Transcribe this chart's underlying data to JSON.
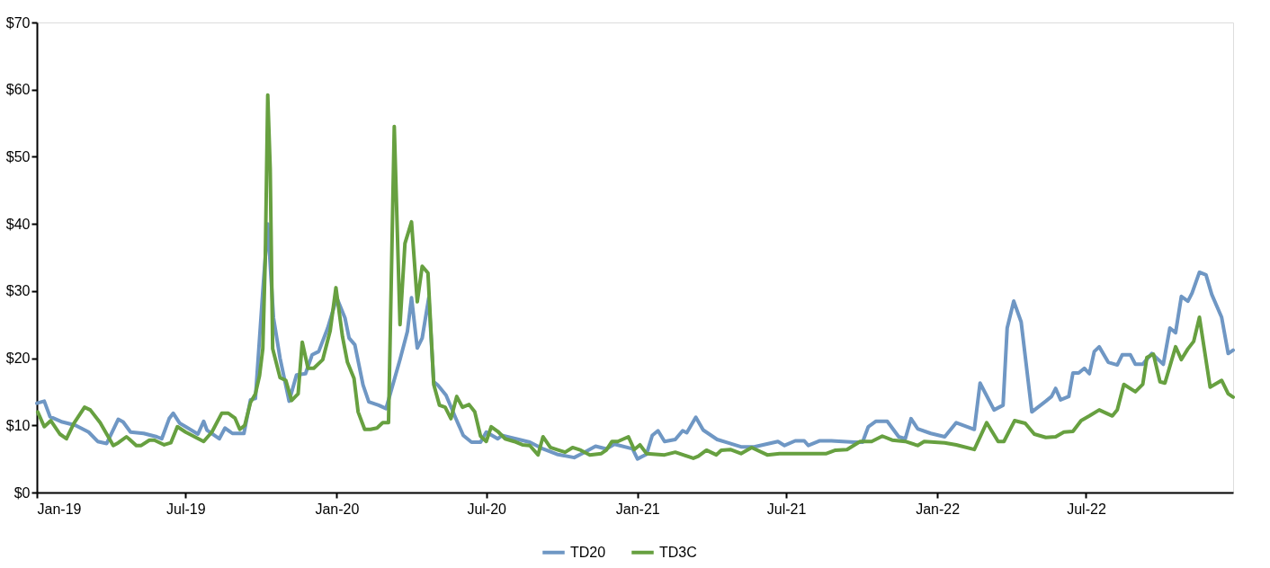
{
  "chart_data": {
    "type": "line",
    "legend": "bottom",
    "grid": false,
    "line_style": "solid",
    "marker": "none",
    "xlim": [
      "2019-01-01",
      "2022-12-27"
    ],
    "xticks": [
      {
        "value": "2019-01-01",
        "label": "Jan-19"
      },
      {
        "value": "2019-07-01",
        "label": "Jul-19"
      },
      {
        "value": "2020-01-01",
        "label": "Jan-20"
      },
      {
        "value": "2020-07-01",
        "label": "Jul-20"
      },
      {
        "value": "2021-01-01",
        "label": "Jan-21"
      },
      {
        "value": "2021-07-01",
        "label": "Jul-21"
      },
      {
        "value": "2022-01-01",
        "label": "Jan-22"
      },
      {
        "value": "2022-07-01",
        "label": "Jul-22"
      }
    ],
    "ylim": [
      0,
      70
    ],
    "yticks": [
      {
        "value": 0,
        "label": "$0"
      },
      {
        "value": 10,
        "label": "$10"
      },
      {
        "value": 20,
        "label": "$20"
      },
      {
        "value": 30,
        "label": "$30"
      },
      {
        "value": 40,
        "label": "$40"
      },
      {
        "value": 50,
        "label": "$50"
      },
      {
        "value": 60,
        "label": "$60"
      },
      {
        "value": 70,
        "label": "$70"
      }
    ],
    "series": [
      {
        "name": "TD20",
        "color": "#6f97c4",
        "x": [
          "2019-01-01",
          "2019-01-10",
          "2019-01-17",
          "2019-02-01",
          "2019-02-17",
          "2019-03-05",
          "2019-03-16",
          "2019-03-27",
          "2019-04-10",
          "2019-04-16",
          "2019-04-25",
          "2019-05-11",
          "2019-05-27",
          "2019-06-02",
          "2019-06-11",
          "2019-06-16",
          "2019-06-24",
          "2019-07-01",
          "2019-07-16",
          "2019-07-23",
          "2019-07-27",
          "2019-08-11",
          "2019-08-18",
          "2019-08-27",
          "2019-09-10",
          "2019-09-18",
          "2019-09-24",
          "2019-10-03",
          "2019-10-09",
          "2019-10-16",
          "2019-10-24",
          "2019-11-04",
          "2019-11-13",
          "2019-11-24",
          "2019-12-02",
          "2019-12-10",
          "2019-12-21",
          "2020-01-01",
          "2020-01-11",
          "2020-01-16",
          "2020-01-23",
          "2020-02-02",
          "2020-02-09",
          "2020-02-21",
          "2020-03-01",
          "2020-03-18",
          "2020-03-27",
          "2020-04-01",
          "2020-04-08",
          "2020-04-14",
          "2020-04-22",
          "2020-04-28",
          "2020-05-03",
          "2020-05-13",
          "2020-05-25",
          "2020-06-03",
          "2020-06-13",
          "2020-06-24",
          "2020-07-01",
          "2020-07-15",
          "2020-07-20",
          "2020-08-06",
          "2020-08-23",
          "2020-09-08",
          "2020-09-25",
          "2020-10-16",
          "2020-10-27",
          "2020-11-11",
          "2020-11-24",
          "2020-12-04",
          "2020-12-26",
          "2021-01-01",
          "2021-01-12",
          "2021-01-19",
          "2021-01-26",
          "2021-02-03",
          "2021-02-16",
          "2021-02-25",
          "2021-03-02",
          "2021-03-13",
          "2021-03-22",
          "2021-04-08",
          "2021-04-21",
          "2021-05-07",
          "2021-05-23",
          "2021-06-21",
          "2021-06-29",
          "2021-07-12",
          "2021-07-23",
          "2021-07-28",
          "2021-08-11",
          "2021-08-25",
          "2021-09-22",
          "2021-10-02",
          "2021-10-09",
          "2021-10-18",
          "2021-11-01",
          "2021-11-15",
          "2021-11-23",
          "2021-11-30",
          "2021-12-08",
          "2021-12-24",
          "2022-01-10",
          "2022-01-24",
          "2022-02-15",
          "2022-02-22",
          "2022-03-11",
          "2022-03-22",
          "2022-03-27",
          "2022-04-04",
          "2022-04-13",
          "2022-04-26",
          "2022-05-13",
          "2022-05-20",
          "2022-05-25",
          "2022-05-31",
          "2022-06-10",
          "2022-06-15",
          "2022-06-22",
          "2022-06-29",
          "2022-07-05",
          "2022-07-11",
          "2022-07-17",
          "2022-07-28",
          "2022-08-08",
          "2022-08-14",
          "2022-08-24",
          "2022-08-30",
          "2022-09-08",
          "2022-09-19",
          "2022-10-03",
          "2022-10-11",
          "2022-10-18",
          "2022-10-25",
          "2022-11-02",
          "2022-11-07",
          "2022-11-16",
          "2022-11-24",
          "2022-12-01",
          "2022-12-13",
          "2022-12-21",
          "2022-12-27"
        ],
        "values": [
          13.3,
          13.6,
          11.3,
          10.5,
          10.0,
          9.0,
          7.6,
          7.3,
          10.9,
          10.5,
          9.0,
          8.8,
          8.3,
          8.0,
          11.0,
          11.8,
          10.3,
          9.8,
          8.7,
          10.6,
          9.3,
          8.0,
          9.6,
          8.8,
          8.8,
          13.8,
          14.0,
          30,
          40,
          26,
          20,
          13.6,
          17.5,
          17.7,
          20.5,
          21,
          24.5,
          29,
          26,
          23,
          22,
          16,
          13.5,
          13.0,
          12.5,
          19.8,
          24,
          29,
          21.5,
          23,
          29,
          16.5,
          16,
          14.5,
          11,
          8.5,
          7.5,
          7.5,
          9,
          8,
          8.5,
          8,
          7.5,
          6.5,
          5.7,
          5.2,
          5.9,
          6.9,
          6.5,
          7.2,
          6.5,
          5.0,
          5.7,
          8.5,
          9.2,
          7.6,
          7.9,
          9.2,
          8.9,
          11.2,
          9.3,
          7.9,
          7.4,
          6.8,
          6.8,
          7.6,
          7.0,
          7.7,
          7.7,
          7.0,
          7.7,
          7.7,
          7.5,
          7.5,
          9.8,
          10.6,
          10.6,
          8.3,
          8.0,
          11.0,
          9.5,
          8.8,
          8.3,
          10.4,
          9.4,
          16.3,
          12.3,
          13.0,
          24.5,
          28.5,
          25.4,
          12.0,
          13.6,
          14.3,
          15.5,
          13.8,
          14.3,
          17.8,
          17.8,
          18.5,
          17.7,
          21.0,
          21.7,
          19.4,
          19.0,
          20.5,
          20.5,
          19.1,
          19.1,
          20.7,
          19.1,
          24.5,
          23.8,
          29.2,
          28.5,
          29.7,
          32.8,
          32.4,
          29.5,
          26.1,
          20.7,
          21.2
        ]
      },
      {
        "name": "TD3C",
        "color": "#67a040",
        "x": [
          "2019-01-02",
          "2019-01-10",
          "2019-01-18",
          "2019-01-29",
          "2019-02-06",
          "2019-02-15",
          "2019-02-28",
          "2019-03-07",
          "2019-03-19",
          "2019-04-04",
          "2019-04-10",
          "2019-04-20",
          "2019-04-23",
          "2019-05-02",
          "2019-05-08",
          "2019-05-18",
          "2019-05-24",
          "2019-06-05",
          "2019-06-13",
          "2019-06-21",
          "2019-07-01",
          "2019-07-12",
          "2019-07-23",
          "2019-08-02",
          "2019-08-14",
          "2019-08-22",
          "2019-08-30",
          "2019-09-05",
          "2019-09-11",
          "2019-09-18",
          "2019-09-24",
          "2019-09-29",
          "2019-10-03",
          "2019-10-06",
          "2019-10-09",
          "2019-10-12",
          "2019-10-15",
          "2019-10-24",
          "2019-10-31",
          "2019-11-07",
          "2019-11-15",
          "2019-11-20",
          "2019-11-27",
          "2019-12-04",
          "2019-12-15",
          "2019-12-24",
          "2019-12-31",
          "2020-01-08",
          "2020-01-14",
          "2020-01-22",
          "2020-01-27",
          "2020-02-04",
          "2020-02-11",
          "2020-02-19",
          "2020-02-26",
          "2020-03-04",
          "2020-03-11",
          "2020-03-18",
          "2020-03-24",
          "2020-04-01",
          "2020-04-08",
          "2020-04-14",
          "2020-04-21",
          "2020-04-28",
          "2020-05-05",
          "2020-05-12",
          "2020-05-19",
          "2020-05-26",
          "2020-06-02",
          "2020-06-10",
          "2020-06-17",
          "2020-06-24",
          "2020-07-01",
          "2020-07-07",
          "2020-07-15",
          "2020-07-24",
          "2020-08-04",
          "2020-08-14",
          "2020-08-23",
          "2020-09-02",
          "2020-09-08",
          "2020-09-17",
          "2020-09-27",
          "2020-10-05",
          "2020-10-14",
          "2020-10-24",
          "2020-11-04",
          "2020-11-18",
          "2020-11-24",
          "2020-12-01",
          "2020-12-08",
          "2020-12-21",
          "2020-12-28",
          "2021-01-04",
          "2021-01-12",
          "2021-02-03",
          "2021-02-16",
          "2021-03-10",
          "2021-03-16",
          "2021-03-26",
          "2021-04-07",
          "2021-04-13",
          "2021-04-24",
          "2021-05-07",
          "2021-05-20",
          "2021-06-08",
          "2021-06-23",
          "2021-07-06",
          "2021-07-28",
          "2021-08-19",
          "2021-08-30",
          "2021-09-13",
          "2021-09-29",
          "2021-10-13",
          "2021-10-26",
          "2021-11-07",
          "2021-11-23",
          "2021-12-08",
          "2021-12-16",
          "2022-01-10",
          "2022-01-24",
          "2022-02-15",
          "2022-03-02",
          "2022-03-16",
          "2022-03-23",
          "2022-04-05",
          "2022-04-18",
          "2022-04-29",
          "2022-05-13",
          "2022-05-25",
          "2022-06-04",
          "2022-06-15",
          "2022-06-25",
          "2022-07-05",
          "2022-07-17",
          "2022-08-02",
          "2022-08-08",
          "2022-08-16",
          "2022-08-30",
          "2022-09-08",
          "2022-09-13",
          "2022-09-21",
          "2022-09-29",
          "2022-10-05",
          "2022-10-18",
          "2022-10-25",
          "2022-11-02",
          "2022-11-09",
          "2022-11-16",
          "2022-11-29",
          "2022-12-13",
          "2022-12-21",
          "2022-12-27"
        ],
        "values": [
          12.0,
          9.8,
          10.7,
          8.7,
          8.0,
          10.3,
          12.7,
          12.3,
          10.4,
          7.0,
          7.4,
          8.3,
          8.0,
          7.0,
          7.0,
          7.8,
          7.8,
          7.1,
          7.4,
          9.8,
          9.0,
          8.3,
          7.6,
          9.0,
          11.8,
          11.8,
          11.1,
          9.4,
          10.0,
          13.4,
          14.7,
          17.4,
          21.4,
          34.8,
          59.2,
          48.2,
          21.4,
          17.1,
          16.7,
          13.7,
          14.7,
          22.4,
          18.5,
          18.5,
          19.8,
          24.1,
          30.5,
          23.2,
          19.4,
          17.0,
          12.0,
          9.4,
          9.4,
          9.6,
          10.4,
          10.4,
          54.5,
          25.0,
          37.1,
          40.3,
          28.4,
          33.7,
          32.7,
          16.1,
          13.0,
          12.7,
          11.0,
          14.3,
          12.7,
          13.1,
          12.0,
          8.4,
          7.6,
          9.8,
          9.1,
          8.0,
          7.6,
          7.1,
          7.0,
          5.6,
          8.3,
          6.7,
          6.3,
          6.0,
          6.7,
          6.3,
          5.6,
          5.8,
          6.3,
          7.6,
          7.6,
          8.3,
          6.4,
          7.1,
          5.8,
          5.6,
          6.0,
          5.1,
          5.4,
          6.3,
          5.6,
          6.3,
          6.4,
          5.8,
          6.7,
          5.6,
          5.8,
          5.8,
          5.8,
          5.8,
          6.3,
          6.4,
          7.6,
          7.6,
          8.4,
          7.8,
          7.6,
          7.0,
          7.6,
          7.4,
          7.1,
          6.4,
          10.4,
          7.6,
          7.6,
          10.7,
          10.3,
          8.7,
          8.2,
          8.3,
          9.0,
          9.1,
          10.7,
          11.4,
          12.3,
          11.4,
          12.3,
          16.1,
          15.0,
          16.1,
          20.1,
          20.6,
          16.5,
          16.3,
          21.7,
          19.8,
          21.4,
          22.5,
          26.1,
          15.7,
          16.7,
          14.7,
          14.2
        ]
      }
    ]
  }
}
